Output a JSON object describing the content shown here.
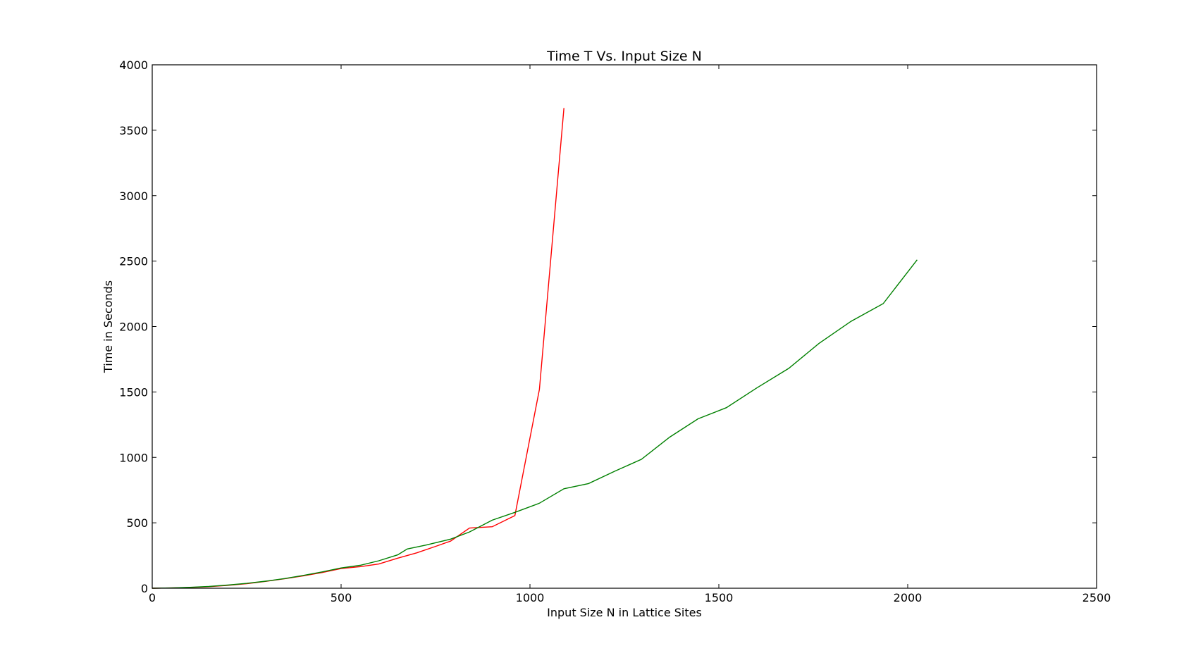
{
  "chart_data": {
    "type": "line",
    "title": "Time T Vs. Input Size N",
    "xlabel": "Input Size N in Lattice Sites",
    "ylabel": "Time in Seconds",
    "xlim": [
      0,
      2500
    ],
    "ylim": [
      0,
      4000
    ],
    "xticks": [
      "0",
      "500",
      "1000",
      "1500",
      "2000",
      "2500"
    ],
    "yticks": [
      "0",
      "500",
      "1000",
      "1500",
      "2000",
      "2500",
      "3000",
      "3500",
      "4000"
    ],
    "grid": false,
    "legend": "none",
    "series": [
      {
        "color": "#ff0000",
        "x": [
          0,
          50,
          100,
          150,
          200,
          250,
          300,
          350,
          400,
          450,
          500,
          550,
          600,
          650,
          700,
          750,
          790,
          840,
          900,
          960,
          1025,
          1090
        ],
        "y": [
          0,
          2,
          6,
          12,
          22,
          35,
          52,
          72,
          95,
          120,
          150,
          165,
          185,
          230,
          270,
          320,
          360,
          460,
          470,
          555,
          1520,
          3670
        ]
      },
      {
        "color": "#008000",
        "x": [
          0,
          50,
          100,
          150,
          200,
          250,
          300,
          350,
          400,
          450,
          500,
          550,
          600,
          650,
          675,
          725,
          790,
          840,
          900,
          960,
          1025,
          1090,
          1155,
          1225,
          1295,
          1370,
          1445,
          1520,
          1600,
          1685,
          1765,
          1850,
          1935,
          2025
        ],
        "y": [
          0,
          2,
          7,
          14,
          24,
          37,
          54,
          74,
          98,
          125,
          155,
          175,
          210,
          255,
          300,
          330,
          375,
          430,
          520,
          580,
          650,
          760,
          800,
          895,
          985,
          1155,
          1295,
          1380,
          1530,
          1680,
          1870,
          2040,
          2175,
          2510
        ]
      }
    ]
  }
}
